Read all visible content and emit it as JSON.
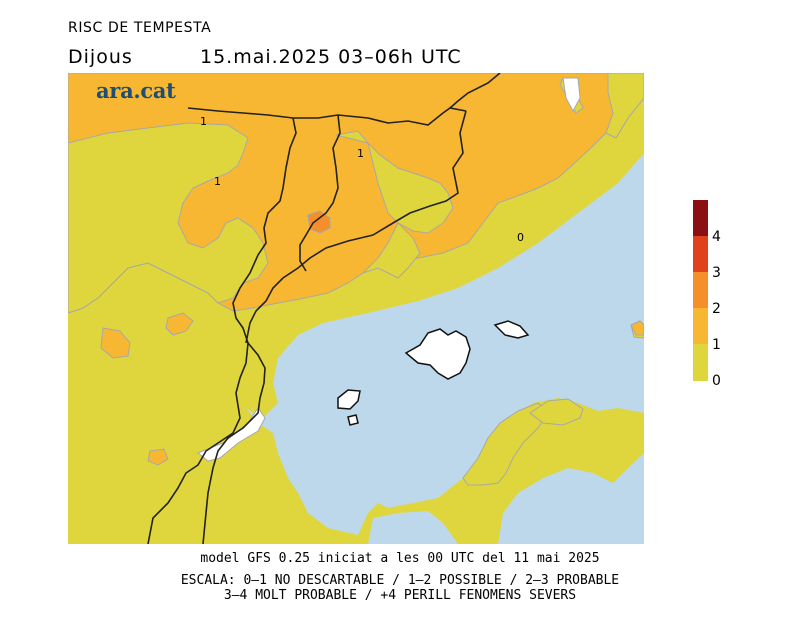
{
  "header": {
    "title": "RISC DE TEMPESTA",
    "day": "Dijous",
    "datetime": "15.mai.2025 03–06h UTC"
  },
  "logo": {
    "text": "ara.cat"
  },
  "map": {
    "contour_labels": [
      "1",
      "1",
      "1",
      "0"
    ],
    "colors": {
      "sea": "#bcd8ea",
      "level_0_1": "#dfd63d",
      "level_1_2": "#f8b732",
      "level_2_3": "#f58f2c",
      "no_data": "#ffffff",
      "border": "#222222"
    }
  },
  "legend": {
    "labels": [
      "4",
      "3",
      "2",
      "1",
      "0"
    ],
    "colors": [
      "#8b1014",
      "#e0421e",
      "#f58f2c",
      "#f8b732",
      "#dfd63d"
    ]
  },
  "footer": {
    "model_line": "model GFS 0.25 iniciat a les 00 UTC del 11 mai 2025",
    "scale_line_1": "ESCALA: 0–1 NO DESCARTABLE / 1–2 POSSIBLE / 2–3 PROBABLE",
    "scale_line_2": "3–4 MOLT PROBABLE / +4 PERILL FENOMENS SEVERS"
  }
}
